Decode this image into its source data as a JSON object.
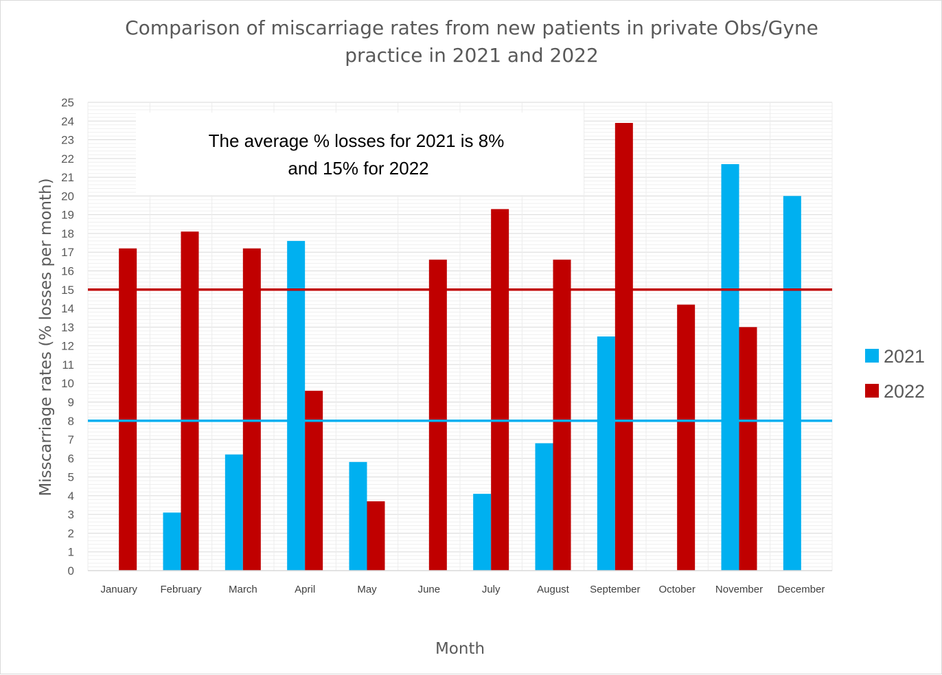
{
  "chart_data": {
    "type": "bar",
    "title_line1": "Comparison of miscarriage rates from new patients in private Obs/Gyne",
    "title_line2": "practice in 2021 and 2022",
    "xlabel": "Month",
    "ylabel": "Misscarriage rates (% losses per month)",
    "ylim": [
      0,
      25
    ],
    "yticks": [
      "0",
      "1",
      "2",
      "3",
      "4",
      "5",
      "6",
      "7",
      "8",
      "9",
      "10",
      "11",
      "12",
      "13",
      "14",
      "15",
      "16",
      "17",
      "18",
      "19",
      "20",
      "21",
      "22",
      "23",
      "24",
      "25"
    ],
    "grid": true,
    "legend_position": "right",
    "categories": [
      "January",
      "February",
      "March",
      "April",
      "May",
      "June",
      "July",
      "August",
      "September",
      "October",
      "November",
      "December"
    ],
    "series": [
      {
        "name": "2021",
        "color": "#00b0f0",
        "values": [
          0,
          3.1,
          6.2,
          17.6,
          5.8,
          0,
          4.1,
          6.8,
          12.5,
          0,
          21.7,
          20.0
        ]
      },
      {
        "name": "2022",
        "color": "#c00000",
        "values": [
          17.2,
          18.1,
          17.2,
          9.6,
          3.7,
          16.6,
          19.3,
          16.6,
          23.9,
          14.2,
          13.0,
          0
        ]
      }
    ],
    "reference_lines": [
      {
        "value": 15,
        "color": "#c00000"
      },
      {
        "value": 8,
        "color": "#00b0f0"
      }
    ],
    "annotation_line1": "The average % losses for 2021 is 8%",
    "annotation_line2": "and 15% for 2022"
  }
}
